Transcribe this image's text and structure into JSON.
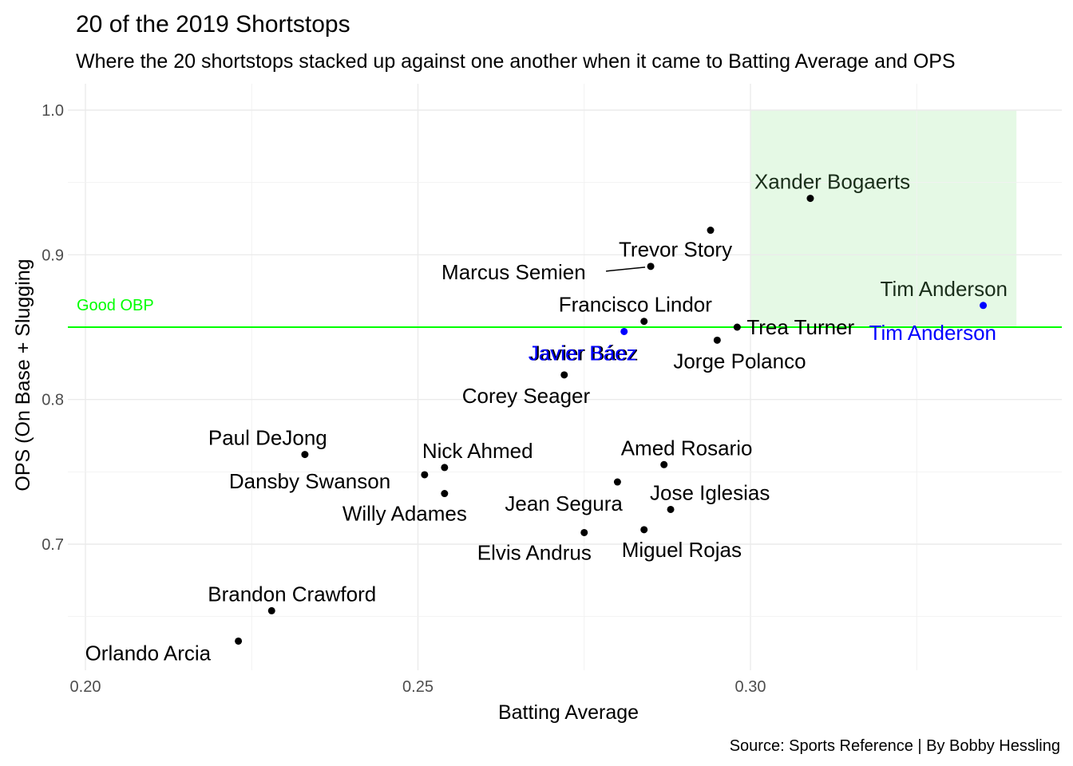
{
  "chart_data": {
    "type": "scatter",
    "title": "20 of the 2019 Shortstops",
    "subtitle": "Where the 20 shortstops stacked up against one another when it came to Batting Average and OPS",
    "xlabel": "Batting Average",
    "ylabel": "OPS (On Base + Slugging",
    "caption": "Source: Sports Reference | By Bobby Hessling",
    "xlim": [
      0.2,
      0.34
    ],
    "ylim": [
      0.62,
      1.0
    ],
    "x_ticks": [
      0.2,
      0.25,
      0.3
    ],
    "x_tick_labels": [
      "0.20",
      "0.25",
      "0.30"
    ],
    "y_ticks": [
      0.7,
      0.8,
      0.9,
      1.0
    ],
    "y_tick_labels": [
      "0.7",
      "0.8",
      "0.9",
      "1.0"
    ],
    "grid": true,
    "reference_line": {
      "y": 0.85,
      "label": "Good OBP",
      "color": "#00ff00"
    },
    "highlight_region": {
      "x": [
        0.3,
        0.34
      ],
      "y": [
        0.85,
        1.0
      ],
      "color": "#e5f9e5"
    },
    "colors": {
      "default": "#000000",
      "highlight": "#0000ff",
      "region_label": "#1a2e1a"
    },
    "points": [
      {
        "name": "Xander Bogaerts",
        "x": 0.309,
        "y": 0.939,
        "label": "Xander Bogaerts"
      },
      {
        "name": "Trevor Story",
        "x": 0.294,
        "y": 0.917,
        "label": "Trevor Story"
      },
      {
        "name": "Marcus Semien",
        "x": 0.285,
        "y": 0.892,
        "label": "Marcus Semien"
      },
      {
        "name": "Tim Anderson",
        "x": 0.335,
        "y": 0.865,
        "label": "Tim Anderson",
        "highlight": true
      },
      {
        "name": "Francisco Lindor",
        "x": 0.284,
        "y": 0.854,
        "label": "Francisco Lindor"
      },
      {
        "name": "Trea Turner",
        "x": 0.298,
        "y": 0.85,
        "label": "Trea Turner"
      },
      {
        "name": "Javier Báez",
        "x": 0.281,
        "y": 0.847,
        "label": "Javier Báez",
        "highlight": true
      },
      {
        "name": "Jorge Polanco",
        "x": 0.295,
        "y": 0.841,
        "label": "Jorge Polanco"
      },
      {
        "name": "Corey Seager",
        "x": 0.272,
        "y": 0.817,
        "label": "Corey Seager"
      },
      {
        "name": "Paul DeJong",
        "x": 0.233,
        "y": 0.762,
        "label": "Paul DeJong"
      },
      {
        "name": "Amed Rosario",
        "x": 0.287,
        "y": 0.755,
        "label": "Amed Rosario"
      },
      {
        "name": "Nick Ahmed",
        "x": 0.254,
        "y": 0.753,
        "label": "Nick Ahmed"
      },
      {
        "name": "Dansby Swanson",
        "x": 0.251,
        "y": 0.748,
        "label": "Dansby Swanson"
      },
      {
        "name": "Jean Segura",
        "x": 0.28,
        "y": 0.743,
        "label": "Jean Segura"
      },
      {
        "name": "Willy Adames",
        "x": 0.254,
        "y": 0.735,
        "label": "Willy Adames"
      },
      {
        "name": "Jose Iglesias",
        "x": 0.288,
        "y": 0.724,
        "label": "Jose Iglesias"
      },
      {
        "name": "Miguel Rojas",
        "x": 0.284,
        "y": 0.71,
        "label": "Miguel Rojas"
      },
      {
        "name": "Elvis Andrus",
        "x": 0.275,
        "y": 0.708,
        "label": "Elvis Andrus"
      },
      {
        "name": "Brandon Crawford",
        "x": 0.228,
        "y": 0.654,
        "label": "Brandon Crawford"
      },
      {
        "name": "Orlando Arcia",
        "x": 0.223,
        "y": 0.633,
        "label": "Orlando Arcia"
      }
    ],
    "extra_labels": [
      {
        "text": "Tim Anderson",
        "x": 0.335,
        "y": 0.865,
        "color": "#0000ff"
      },
      {
        "text": "Javier Báez",
        "x": 0.281,
        "y": 0.847,
        "color": "#0000ff"
      }
    ]
  }
}
